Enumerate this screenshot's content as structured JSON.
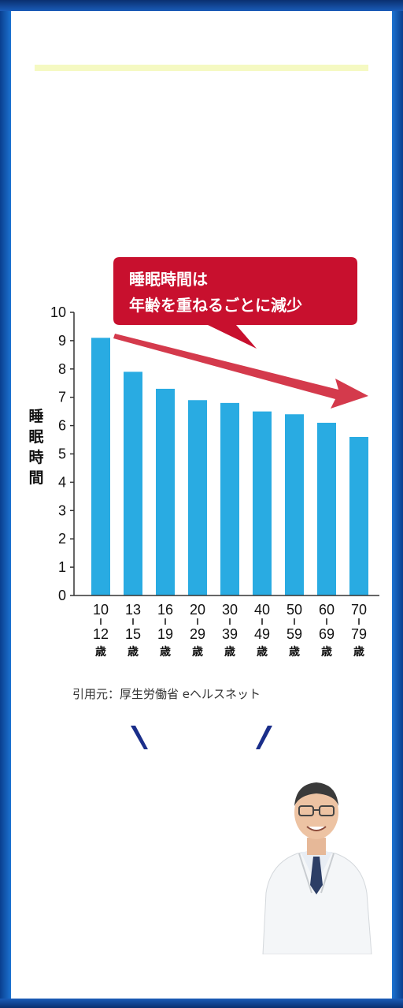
{
  "bubble": {
    "line1": "睡眠時間は",
    "line2": "年齢を重ねるごとに減少"
  },
  "source_text": "引用元：厚生労働省 eヘルスネット",
  "chart_data": {
    "type": "bar",
    "ylabel": "睡眠時間",
    "ylim": [
      0,
      10
    ],
    "yticks": [
      0,
      1,
      2,
      3,
      4,
      5,
      6,
      7,
      8,
      9,
      10
    ],
    "categories": [
      {
        "from": "10",
        "to": "12",
        "unit": "歳"
      },
      {
        "from": "13",
        "to": "15",
        "unit": "歳"
      },
      {
        "from": "16",
        "to": "19",
        "unit": "歳"
      },
      {
        "from": "20",
        "to": "29",
        "unit": "歳"
      },
      {
        "from": "30",
        "to": "39",
        "unit": "歳"
      },
      {
        "from": "40",
        "to": "49",
        "unit": "歳"
      },
      {
        "from": "50",
        "to": "59",
        "unit": "歳"
      },
      {
        "from": "60",
        "to": "69",
        "unit": "歳"
      },
      {
        "from": "70",
        "to": "79",
        "unit": "歳"
      }
    ],
    "values": [
      9.1,
      7.9,
      7.3,
      6.9,
      6.8,
      6.5,
      6.4,
      6.1,
      5.6
    ],
    "bar_color": "#29abe2",
    "accent_color": "#c8102e",
    "trend_arrow_color": "#d43a4c"
  },
  "icons": {
    "deco_left": "slash-left-icon",
    "deco_right": "slash-right-icon",
    "doctor": "doctor-portrait"
  }
}
